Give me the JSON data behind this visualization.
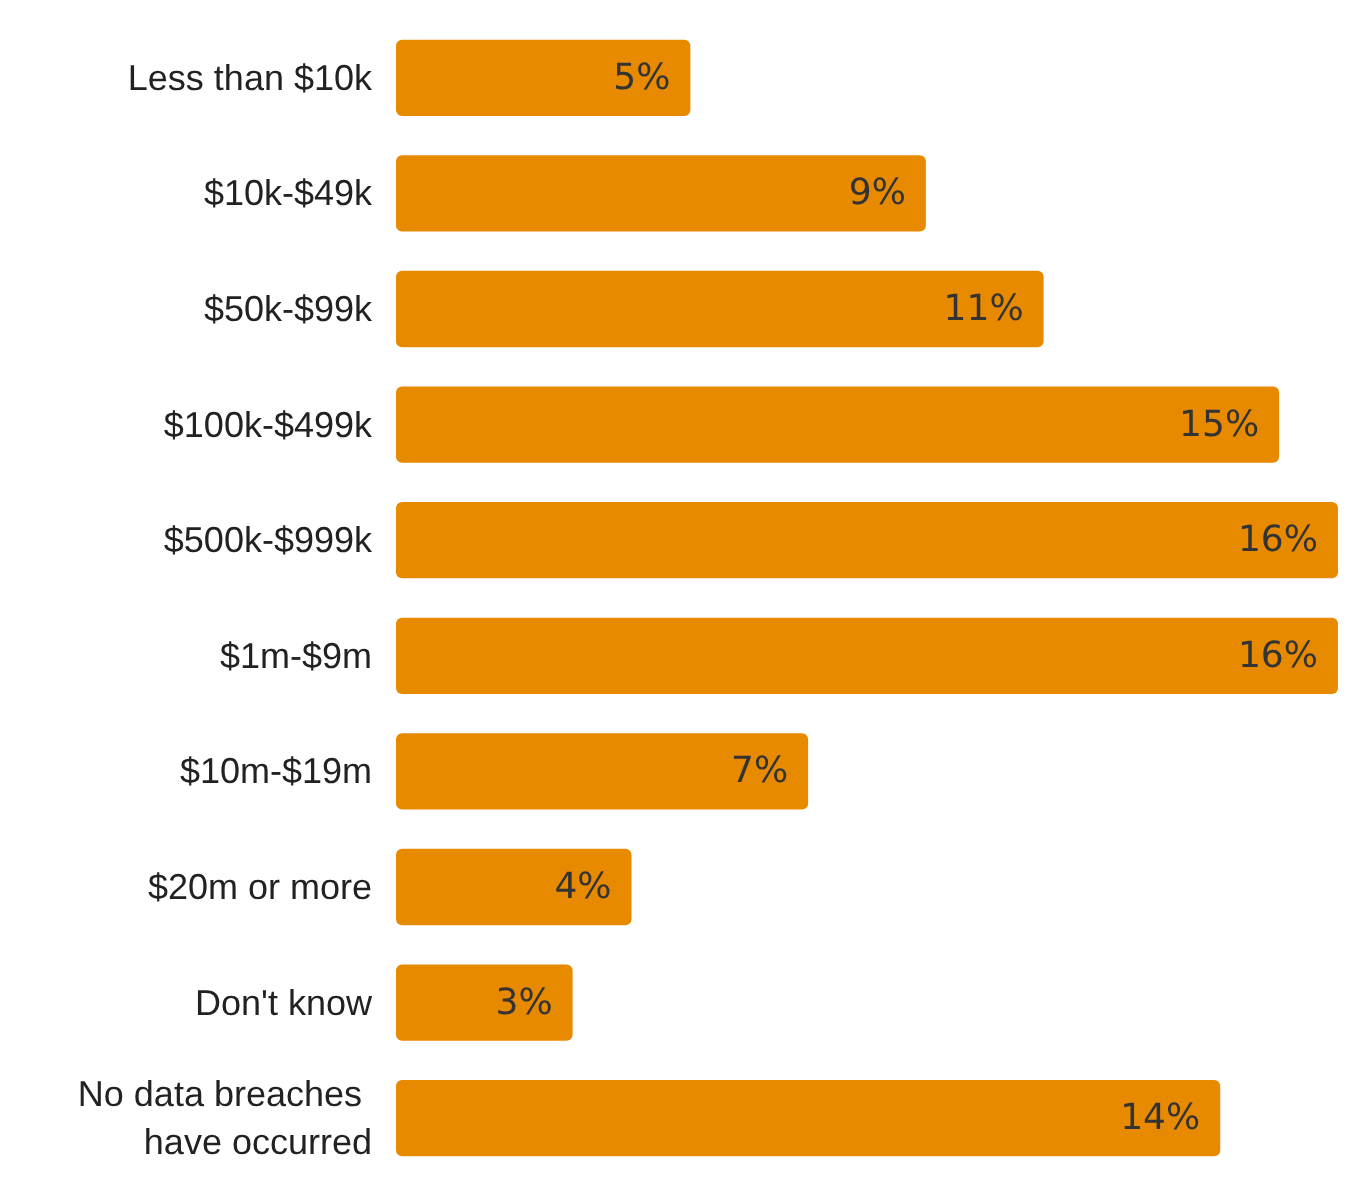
{
  "chart_data": {
    "type": "bar",
    "orientation": "horizontal",
    "categories": [
      "Less than $10k",
      "$10k-$49k",
      "$50k-$99k",
      "$100k-$499k",
      "$500k-$999k",
      "$1m-$9m",
      "$10m-$19m",
      "$20m or more",
      "Don't know",
      "No data breaches have occurred"
    ],
    "values": [
      5,
      9,
      11,
      15,
      16,
      16,
      7,
      4,
      3,
      14
    ],
    "value_labels": [
      "5%",
      "9%",
      "11%",
      "15%",
      "16%",
      "16%",
      "7%",
      "4%",
      "3%",
      "14%"
    ],
    "color": "#e88a00"
  }
}
